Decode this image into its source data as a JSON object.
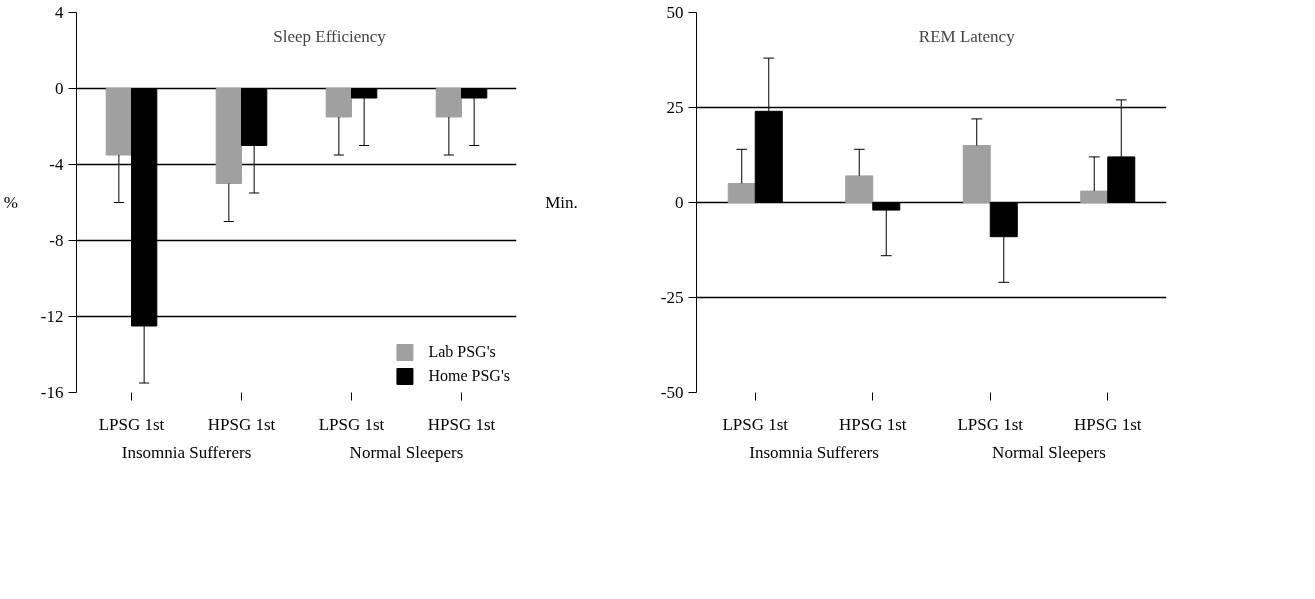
{
  "chart_data": [
    {
      "type": "bar",
      "title": "Sleep Efficiency",
      "ylabel": "%",
      "categories": [
        "LPSG 1st",
        "HPSG 1st",
        "LPSG 1st",
        "HPSG 1st"
      ],
      "annotations": [
        "Insomnia Sufferers",
        "Normal Sleepers"
      ],
      "ylim": [
        -16,
        4
      ],
      "yticks": [
        -16,
        -12,
        -8,
        -4,
        0,
        4
      ],
      "grid": "y",
      "legend": "bottom right",
      "series": [
        {
          "name": "Lab PSG's",
          "color": "#a0a0a0",
          "values": [
            -3.5,
            -5,
            -1.5,
            -1.5
          ],
          "errors": [
            [
              -6,
              -3.5
            ],
            [
              -7,
              -5
            ],
            [
              -3.5,
              -1.5
            ],
            [
              -3.5,
              -1.5
            ]
          ]
        },
        {
          "name": "Home PSG's",
          "color": "#000000",
          "values": [
            -12.5,
            -3,
            -0.5,
            -0.5
          ],
          "errors": [
            [
              -15.5,
              -12.5
            ],
            [
              -5.5,
              -3
            ],
            [
              -3,
              -0.5
            ],
            [
              -3,
              -0.5
            ]
          ]
        }
      ]
    },
    {
      "type": "bar",
      "title": "REM Latency",
      "ylabel": "Min.",
      "categories": [
        "LPSG 1st",
        "HPSG 1st",
        "LPSG 1st",
        "HPSG 1st"
      ],
      "annotations": [
        "Insomnia Sufferers",
        "Normal Sleepers"
      ],
      "ylim": [
        -50,
        50
      ],
      "yticks": [
        -50,
        -25,
        0,
        25,
        50
      ],
      "grid": "y",
      "series": [
        {
          "color": "#a0a0a0",
          "values": [
            5,
            7,
            15,
            3
          ],
          "errors": [
            [
              5,
              14
            ],
            [
              7,
              14
            ],
            [
              15,
              22
            ],
            [
              3,
              12
            ]
          ]
        },
        {
          "color": "#000000",
          "values": [
            24,
            -2,
            -9,
            12
          ],
          "errors": [
            [
              24,
              38
            ],
            [
              -14,
              -2
            ],
            [
              -21,
              -9
            ],
            [
              12,
              27
            ]
          ]
        }
      ]
    }
  ]
}
